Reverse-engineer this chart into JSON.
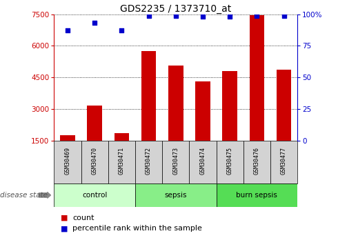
{
  "title": "GDS2235 / 1373710_at",
  "samples": [
    "GSM30469",
    "GSM30470",
    "GSM30471",
    "GSM30472",
    "GSM30473",
    "GSM30474",
    "GSM30475",
    "GSM30476",
    "GSM30477"
  ],
  "counts": [
    1750,
    3150,
    1850,
    5750,
    5050,
    4300,
    4800,
    7450,
    4850
  ],
  "percentiles": [
    87,
    93,
    87,
    99,
    99,
    98,
    98,
    99,
    99
  ],
  "group_control": {
    "label": "control",
    "start": 0,
    "end": 2,
    "color": "#ccffcc"
  },
  "group_sepsis": {
    "label": "sepsis",
    "start": 3,
    "end": 5,
    "color": "#88ee88"
  },
  "group_burn": {
    "label": "burn sepsis",
    "start": 6,
    "end": 8,
    "color": "#55dd55"
  },
  "ylim_left": [
    1500,
    7500
  ],
  "yticks_left": [
    1500,
    3000,
    4500,
    6000,
    7500
  ],
  "ylim_right": [
    0,
    100
  ],
  "yticks_right": [
    0,
    25,
    50,
    75,
    100
  ],
  "bar_color": "#cc0000",
  "dot_color": "#0000cc",
  "bar_width": 0.55,
  "sample_box_color": "#d3d3d3",
  "disease_state_label": "disease state",
  "legend_count": "count",
  "legend_percentile": "percentile rank within the sample",
  "title_fontsize": 10,
  "axis_fontsize": 7.5,
  "label_fontsize": 7.5,
  "legend_fontsize": 8
}
